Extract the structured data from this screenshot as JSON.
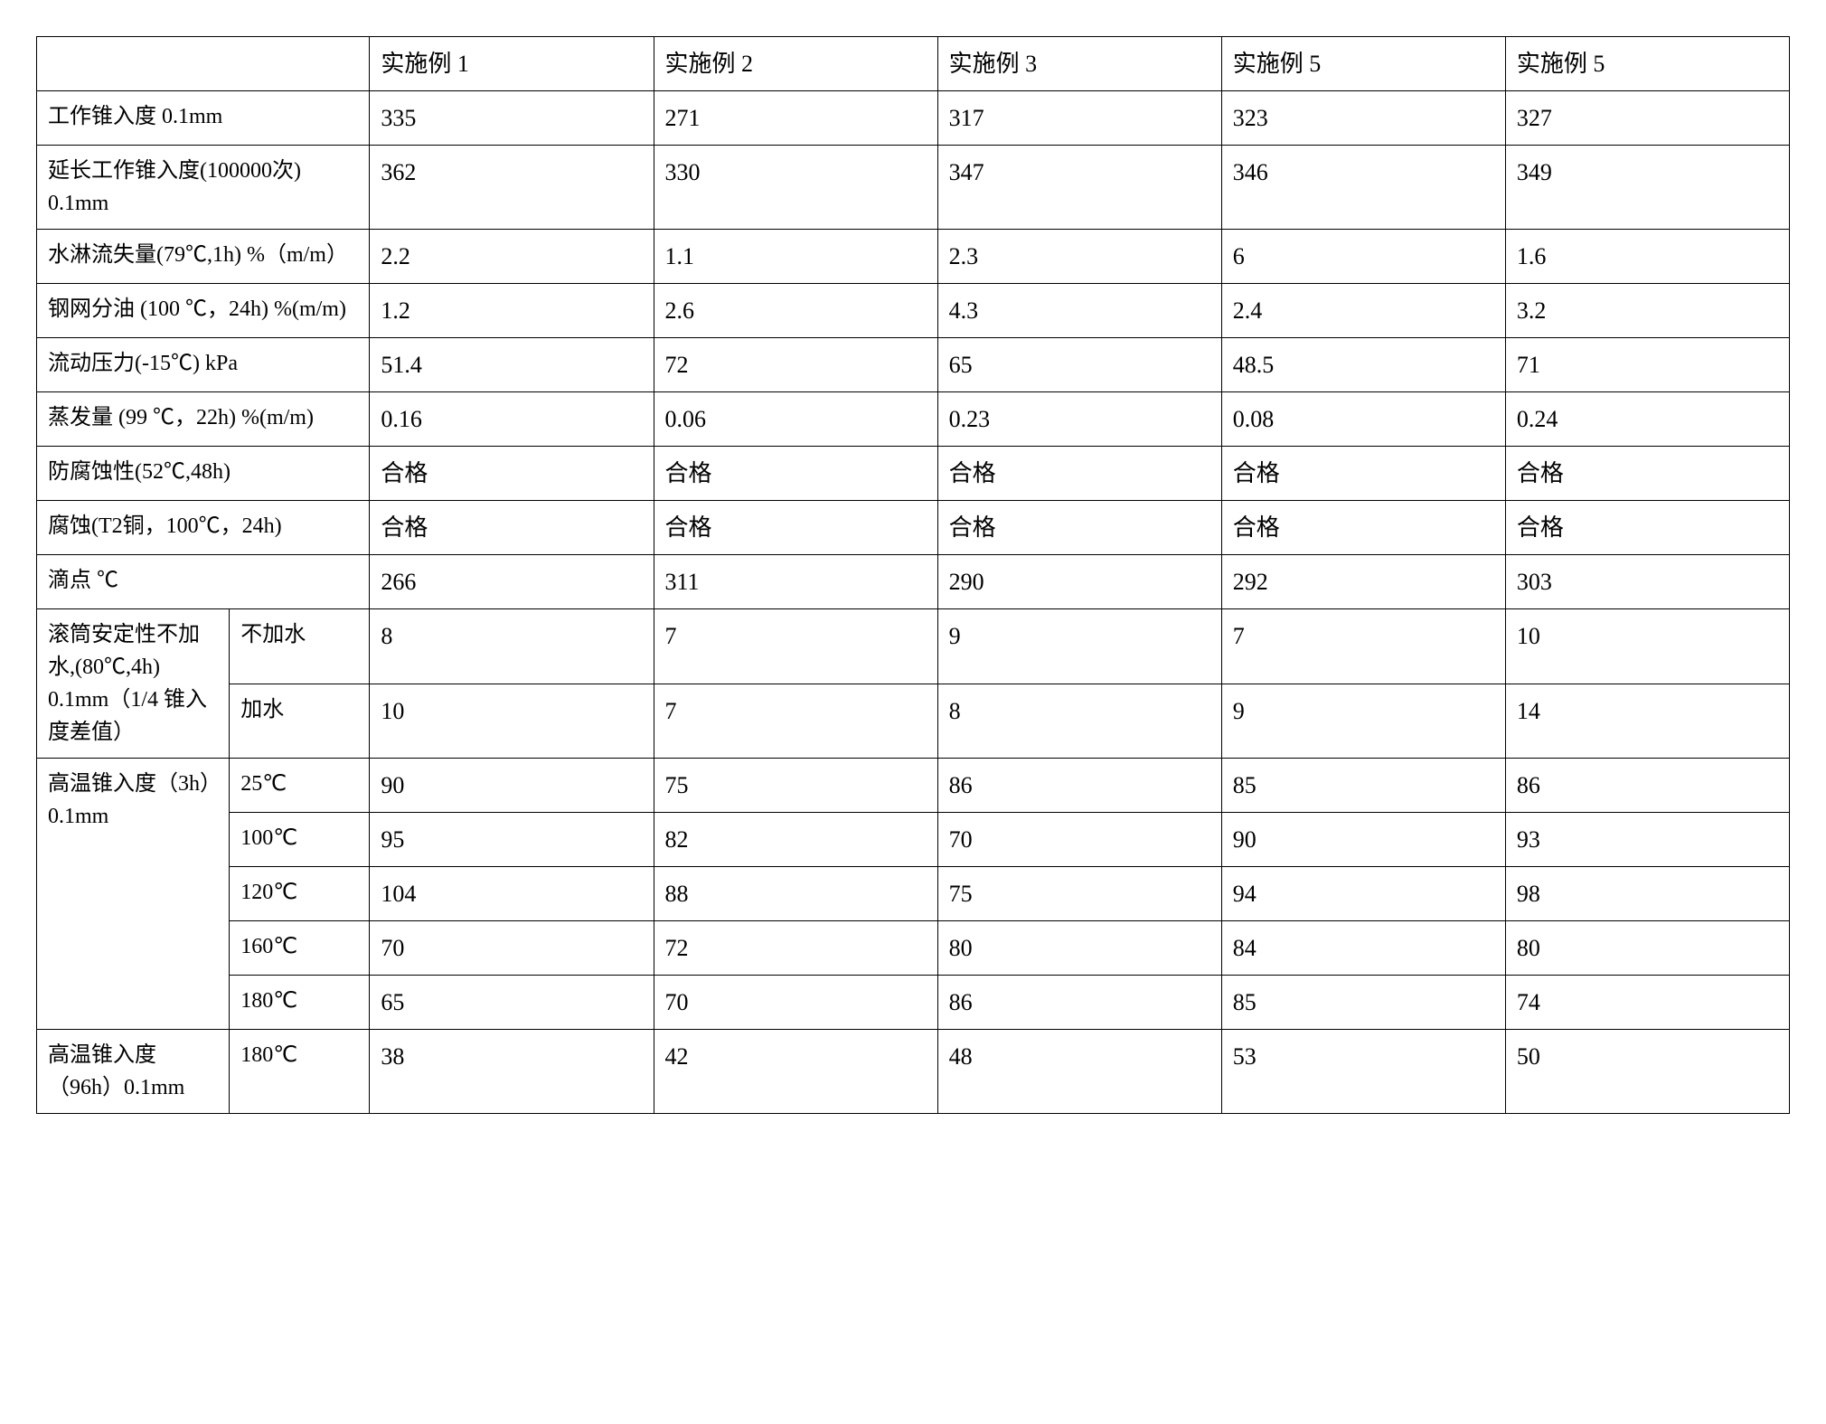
{
  "table": {
    "headers": [
      "",
      "实施例 1",
      "实施例 2",
      "实施例 3",
      "实施例 5",
      "实施例 5"
    ],
    "rows_single": [
      {
        "label": "工作锥入度 0.1mm",
        "v": [
          "335",
          "271",
          "317",
          "323",
          "327"
        ]
      },
      {
        "label": "延长工作锥入度(100000次) 0.1mm",
        "v": [
          "362",
          "330",
          "347",
          "346",
          "349"
        ]
      },
      {
        "label": "水淋流失量(79℃,1h) %（m/m）",
        "v": [
          "2.2",
          "1.1",
          "2.3",
          "6",
          "1.6"
        ]
      },
      {
        "label": "钢网分油 (100 ℃，24h) %(m/m)",
        "v": [
          "1.2",
          "2.6",
          "4.3",
          "2.4",
          "3.2"
        ]
      },
      {
        "label": "流动压力(-15℃) kPa",
        "v": [
          "51.4",
          "72",
          "65",
          "48.5",
          "71"
        ]
      },
      {
        "label": "蒸发量 (99 ℃，22h) %(m/m)",
        "v": [
          "0.16",
          "0.06",
          "0.23",
          "0.08",
          "0.24"
        ]
      },
      {
        "label": "防腐蚀性(52℃,48h)",
        "v": [
          "合格",
          "合格",
          "合格",
          "合格",
          "合格"
        ]
      },
      {
        "label": "腐蚀(T2铜，100℃，24h)",
        "v": [
          "合格",
          "合格",
          "合格",
          "合格",
          "合格"
        ]
      },
      {
        "label": "滴点 ℃",
        "v": [
          "266",
          "311",
          "290",
          "292",
          "303"
        ]
      }
    ],
    "group_roller": {
      "label": "滚筒安定性不加\n水,(80℃,4h) 0.1mm（1/4 锥入度差值）",
      "subs": [
        {
          "sub": "不加水",
          "v": [
            "8",
            "7",
            "9",
            "7",
            "10"
          ]
        },
        {
          "sub": "加水",
          "v": [
            "10",
            "7",
            "8",
            "9",
            "14"
          ]
        }
      ]
    },
    "group_ht3h": {
      "label": "高温锥入度（3h）0.1mm",
      "subs": [
        {
          "sub": "25℃",
          "v": [
            "90",
            "75",
            "86",
            "85",
            "86"
          ]
        },
        {
          "sub": "100℃",
          "v": [
            "95",
            "82",
            "70",
            "90",
            "93"
          ]
        },
        {
          "sub": "120℃",
          "v": [
            "104",
            "88",
            "75",
            "94",
            "98"
          ]
        },
        {
          "sub": "160℃",
          "v": [
            "70",
            "72",
            "80",
            "84",
            "80"
          ]
        },
        {
          "sub": "180℃",
          "v": [
            "65",
            "70",
            "86",
            "85",
            "74"
          ]
        }
      ]
    },
    "group_ht96h": {
      "label": "高温锥入度（96h）0.1mm",
      "subs": [
        {
          "sub": "180℃",
          "v": [
            "38",
            "42",
            "48",
            "53",
            "50"
          ]
        }
      ]
    }
  },
  "style": {
    "background_color": "#ffffff",
    "border_color": "#000000",
    "text_color": "#000000",
    "header_fontsize": 26,
    "cell_fontsize": 26,
    "label_fontsize": 24,
    "font_family": "SimSun"
  }
}
